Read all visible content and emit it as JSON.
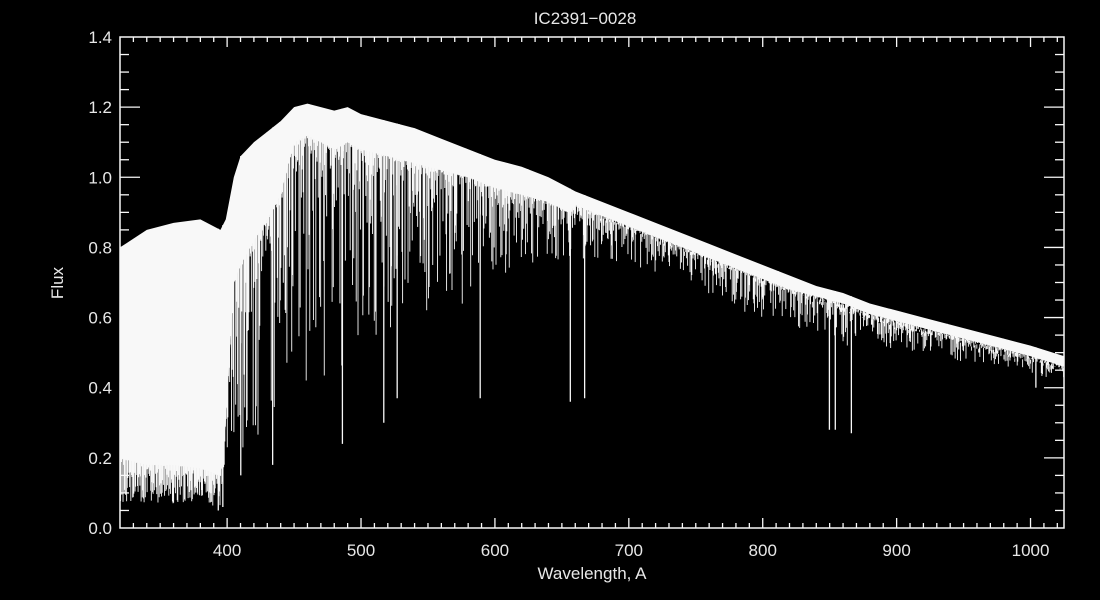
{
  "chart_data": {
    "type": "line",
    "title": "IC2391−0028",
    "xlabel": "Wavelength, A",
    "ylabel": "Flux",
    "xlim": [
      320,
      1025
    ],
    "ylim": [
      0.0,
      1.4
    ],
    "xticks": [
      "400",
      "500",
      "600",
      "700",
      "800",
      "900",
      "1000"
    ],
    "yticks": [
      "0.0",
      "0.2",
      "0.4",
      "0.6",
      "0.8",
      "1.0",
      "1.2",
      "1.4"
    ],
    "grid": false,
    "colors": {
      "background": "#000000",
      "foreground": "#f8f8f8"
    },
    "series": [
      {
        "wavelength": [
          320,
          340,
          360,
          380,
          395,
          399,
          405,
          410,
          420,
          430,
          440,
          450,
          460,
          470,
          480,
          490,
          500,
          520,
          540,
          560,
          580,
          600,
          620,
          640,
          655,
          660,
          680,
          700,
          720,
          740,
          760,
          780,
          800,
          820,
          840,
          860,
          880,
          900,
          920,
          940,
          960,
          980,
          1000,
          1025
        ],
        "flux_upper": [
          0.8,
          0.85,
          0.87,
          0.88,
          0.85,
          0.88,
          1.0,
          1.06,
          1.1,
          1.13,
          1.16,
          1.2,
          1.21,
          1.2,
          1.19,
          1.2,
          1.18,
          1.16,
          1.14,
          1.11,
          1.08,
          1.05,
          1.03,
          1.0,
          0.97,
          0.96,
          0.93,
          0.9,
          0.87,
          0.84,
          0.81,
          0.78,
          0.75,
          0.72,
          0.69,
          0.67,
          0.64,
          0.62,
          0.6,
          0.58,
          0.56,
          0.54,
          0.52,
          0.49
        ],
        "flux_continuum_floor": [
          0.2,
          0.18,
          0.18,
          0.17,
          0.15,
          0.3,
          0.7,
          0.75,
          0.82,
          0.88,
          0.95,
          1.1,
          1.12,
          1.1,
          1.08,
          1.1,
          1.08,
          1.06,
          1.04,
          1.02,
          1.0,
          0.97,
          0.95,
          0.93,
          0.9,
          0.92,
          0.89,
          0.86,
          0.83,
          0.8,
          0.77,
          0.74,
          0.71,
          0.68,
          0.66,
          0.64,
          0.61,
          0.59,
          0.57,
          0.55,
          0.53,
          0.51,
          0.49,
          0.46
        ],
        "flux_line_floor": [
          0.07,
          0.07,
          0.07,
          0.07,
          0.06,
          0.2,
          0.2,
          0.2,
          0.22,
          0.28,
          0.3,
          0.33,
          0.36,
          0.4,
          0.42,
          0.45,
          0.5,
          0.55,
          0.58,
          0.6,
          0.65,
          0.72,
          0.74,
          0.75,
          0.75,
          0.76,
          0.76,
          0.75,
          0.72,
          0.7,
          0.66,
          0.62,
          0.6,
          0.58,
          0.55,
          0.52,
          0.52,
          0.51,
          0.5,
          0.48,
          0.47,
          0.46,
          0.44,
          0.42
        ]
      }
    ],
    "deep_lines": [
      {
        "wavelength": 393.4,
        "flux": 0.05
      },
      {
        "wavelength": 396.8,
        "flux": 0.06
      },
      {
        "wavelength": 410.2,
        "flux": 0.15
      },
      {
        "wavelength": 434.0,
        "flux": 0.18
      },
      {
        "wavelength": 486.1,
        "flux": 0.24
      },
      {
        "wavelength": 517.0,
        "flux": 0.3
      },
      {
        "wavelength": 527.0,
        "flux": 0.37
      },
      {
        "wavelength": 589.0,
        "flux": 0.37
      },
      {
        "wavelength": 656.3,
        "flux": 0.36
      },
      {
        "wavelength": 667.0,
        "flux": 0.37
      },
      {
        "wavelength": 849.8,
        "flux": 0.28
      },
      {
        "wavelength": 854.2,
        "flux": 0.28
      },
      {
        "wavelength": 866.2,
        "flux": 0.27
      },
      {
        "wavelength": 1004.0,
        "flux": 0.4
      }
    ]
  }
}
